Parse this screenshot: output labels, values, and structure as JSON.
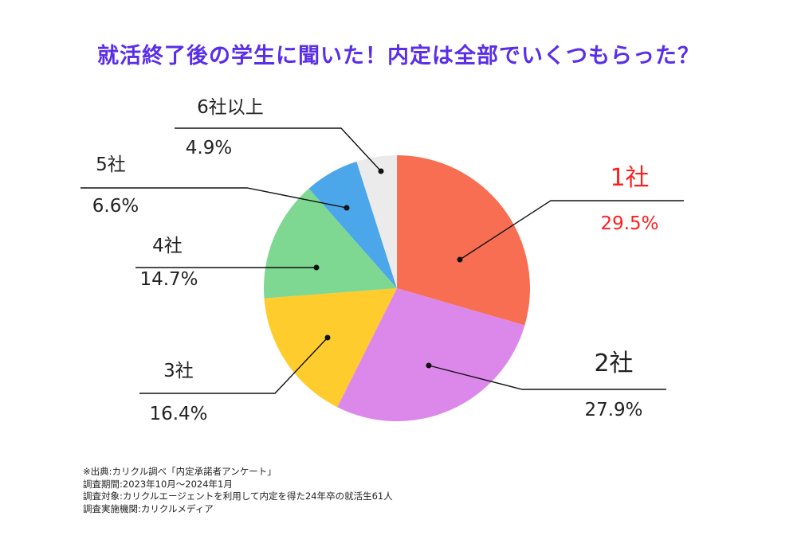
{
  "title": "就活終了後の学生に聞いた！内定は全部でいくつもらった？",
  "chart_data": {
    "type": "pie",
    "start_angle_deg": 0,
    "direction": "clockwise",
    "slices": [
      {
        "label": "1社",
        "value": 29.5,
        "value_text": "29.5%",
        "color": "#f76e52",
        "highlight": true
      },
      {
        "label": "2社",
        "value": 27.9,
        "value_text": "27.9%",
        "color": "#dc87ea",
        "highlight": false
      },
      {
        "label": "3社",
        "value": 16.4,
        "value_text": "16.4%",
        "color": "#ffcc2e",
        "highlight": false
      },
      {
        "label": "4社",
        "value": 14.7,
        "value_text": "14.7%",
        "color": "#7ed891",
        "highlight": false
      },
      {
        "label": "5社",
        "value": 6.6,
        "value_text": "6.6%",
        "color": "#4ba6ea",
        "highlight": false
      },
      {
        "label": "6社以上",
        "value": 4.9,
        "value_text": "4.9%",
        "color": "#ebebeb",
        "highlight": false
      }
    ],
    "highlight_color": "#ff1e1e",
    "label_color": "#222222"
  },
  "notes": [
    "※出典:カリクル調べ「内定承諾者アンケート」",
    "調査期間:2023年10月〜2024年1月",
    "調査対象:カリクルエージェントを利用して内定を得た24年卒の就活生61人",
    "調査実施機関:カリクルメディア"
  ]
}
